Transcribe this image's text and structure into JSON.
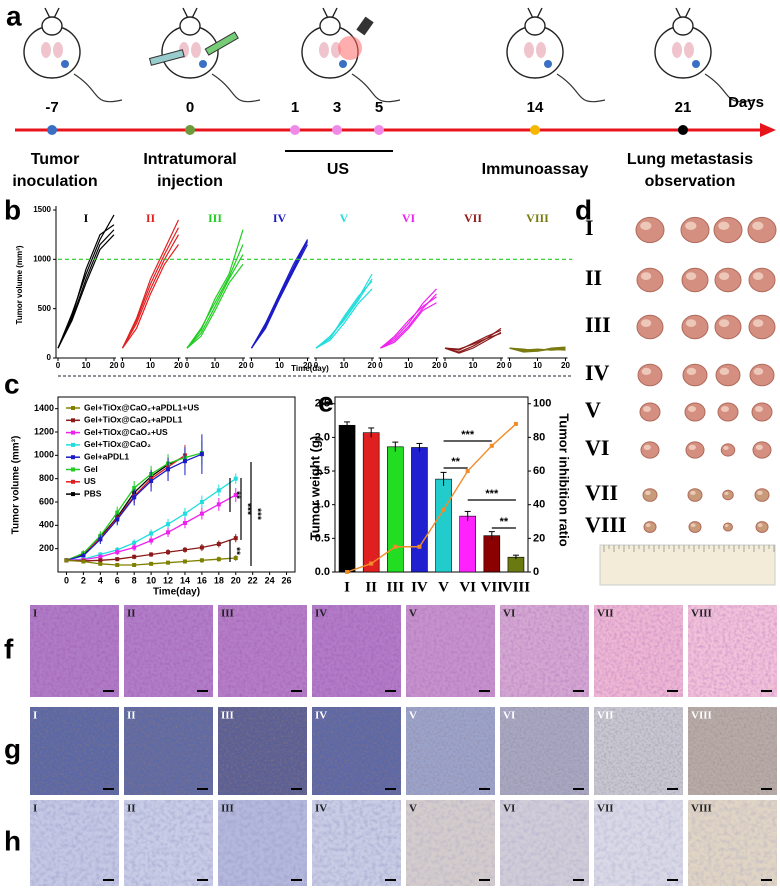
{
  "a": {
    "label": "a",
    "days": [
      -7,
      0,
      1,
      3,
      5,
      14,
      21
    ],
    "unit": "Days",
    "marker_colors": [
      "#3a6fc4",
      "#6a9a3a",
      "#f08ae8",
      "#f08ae8",
      "#f08ae8",
      "#f5b800",
      "#000000"
    ],
    "events": [
      [
        "Tumor",
        "inoculation"
      ],
      [
        "Intratumoral",
        "injection"
      ],
      [
        "US"
      ],
      [
        "Immunoassay"
      ],
      [
        "Lung metastasis",
        "observation"
      ]
    ]
  },
  "chart_data": [
    {
      "type": "small_multiples",
      "label": "b",
      "ylabel": "Tumor volume (mm³)",
      "xlabel": "Time(day)",
      "ylim": [
        0,
        1500
      ],
      "yticks": [
        0,
        500,
        1000,
        1500
      ],
      "xlim": [
        0,
        20
      ],
      "xticks": [
        0,
        10,
        20
      ],
      "threshold": 1000,
      "threshold_color": "#22cc22",
      "x": [
        0,
        5,
        10,
        15,
        20
      ],
      "groups": [
        {
          "name": "I",
          "color": "#000000",
          "curves": [
            [
              100,
              400,
              800,
              1150,
              1300
            ],
            [
              100,
              450,
              850,
              1200,
              1450
            ],
            [
              100,
              380,
              760,
              1100,
              1250
            ],
            [
              100,
              420,
              900,
              1250,
              1350
            ]
          ]
        },
        {
          "name": "II",
          "color": "#e02020",
          "curves": [
            [
              100,
              350,
              700,
              1000,
              1250
            ],
            [
              100,
              400,
              800,
              1100,
              1400
            ],
            [
              100,
              300,
              650,
              950,
              1150
            ],
            [
              100,
              380,
              750,
              1050,
              1320
            ]
          ]
        },
        {
          "name": "III",
          "color": "#22cc22",
          "curves": [
            [
              100,
              280,
              600,
              850,
              1300
            ],
            [
              100,
              250,
              520,
              800,
              1050
            ],
            [
              100,
              300,
              560,
              820,
              1150
            ],
            [
              100,
              220,
              480,
              760,
              950
            ]
          ]
        },
        {
          "name": "IV",
          "color": "#1a1ac8",
          "curves": [
            [
              100,
              350,
              650,
              950,
              1200
            ],
            [
              100,
              320,
              620,
              900,
              1180
            ],
            [
              100,
              300,
              600,
              880,
              1150
            ],
            [
              100,
              340,
              640,
              920,
              1200
            ]
          ]
        },
        {
          "name": "V",
          "color": "#22dddd",
          "curves": [
            [
              100,
              200,
              400,
              600,
              850
            ],
            [
              100,
              220,
              380,
              580,
              800
            ],
            [
              100,
              180,
              350,
              550,
              700
            ],
            [
              100,
              200,
              420,
              620,
              780
            ]
          ]
        },
        {
          "name": "VI",
          "color": "#ee22ee",
          "curves": [
            [
              100,
              200,
              350,
              550,
              700
            ],
            [
              100,
              180,
              320,
              500,
              650
            ],
            [
              100,
              220,
              380,
              520,
              620
            ],
            [
              100,
              160,
              300,
              480,
              560
            ]
          ]
        },
        {
          "name": "VII",
          "color": "#8b1a1a",
          "curves": [
            [
              100,
              60,
              120,
              200,
              300
            ],
            [
              100,
              80,
              150,
              220,
              280
            ],
            [
              100,
              50,
              100,
              180,
              260
            ],
            [
              100,
              90,
              140,
              200,
              250
            ]
          ]
        },
        {
          "name": "VIII",
          "color": "#7a7a10",
          "curves": [
            [
              100,
              70,
              80,
              90,
              100
            ],
            [
              100,
              90,
              70,
              100,
              110
            ],
            [
              100,
              80,
              90,
              80,
              90
            ],
            [
              100,
              60,
              70,
              90,
              80
            ]
          ]
        }
      ]
    },
    {
      "type": "line",
      "label": "c",
      "ylabel": "Tumor volume (mm³)",
      "xlabel": "Time(day)",
      "xlim": [
        -1,
        27
      ],
      "xticks": [
        0,
        2,
        4,
        6,
        8,
        10,
        12,
        14,
        16,
        18,
        20,
        22,
        24,
        26
      ],
      "ylim": [
        0,
        1500
      ],
      "yticks": [
        200,
        400,
        600,
        800,
        1000,
        1200,
        1400
      ],
      "x": [
        0,
        2,
        4,
        6,
        8,
        10,
        12,
        14,
        16,
        18,
        20
      ],
      "series": [
        {
          "name": "Gel+TiOx@CaO₂+aPDL1+US",
          "color": "#808000",
          "values": [
            100,
            90,
            70,
            60,
            60,
            70,
            80,
            90,
            100,
            110,
            120
          ],
          "errors": [
            15,
            15,
            12,
            12,
            12,
            15,
            15,
            18,
            20,
            22,
            25
          ]
        },
        {
          "name": "Gel+TiOx@CaO₂+aPDL1",
          "color": "#8b1a1a",
          "values": [
            100,
            95,
            100,
            110,
            130,
            150,
            170,
            190,
            210,
            240,
            290
          ],
          "errors": [
            15,
            15,
            15,
            18,
            20,
            20,
            25,
            25,
            30,
            30,
            35
          ]
        },
        {
          "name": "Gel+TiOx@CaO₂+US",
          "color": "#ee22ee",
          "values": [
            100,
            105,
            130,
            170,
            210,
            270,
            340,
            420,
            500,
            580,
            660
          ],
          "errors": [
            15,
            15,
            20,
            25,
            30,
            35,
            40,
            45,
            50,
            55,
            60
          ]
        },
        {
          "name": "Gel+TiOx@CaO₂",
          "color": "#22dddd",
          "values": [
            100,
            110,
            150,
            190,
            250,
            330,
            410,
            500,
            600,
            700,
            800
          ],
          "errors": [
            15,
            15,
            20,
            25,
            30,
            35,
            45,
            50,
            55,
            50,
            45
          ]
        },
        {
          "name": "Gel+aPDL1",
          "color": "#1a1ac8",
          "values": [
            100,
            140,
            280,
            450,
            640,
            780,
            880,
            950,
            1010,
            null,
            null
          ],
          "errors": [
            15,
            25,
            40,
            50,
            70,
            90,
            100,
            120,
            170,
            null,
            null
          ]
        },
        {
          "name": "Gel",
          "color": "#22cc22",
          "values": [
            100,
            160,
            310,
            510,
            720,
            840,
            930,
            980,
            1020,
            null,
            null
          ],
          "errors": [
            15,
            25,
            40,
            50,
            60,
            70,
            80,
            90,
            100,
            null,
            null
          ]
        },
        {
          "name": "US",
          "color": "#e02020",
          "values": [
            100,
            160,
            290,
            460,
            650,
            800,
            900,
            1000,
            null,
            null,
            null
          ],
          "errors": [
            15,
            25,
            35,
            45,
            60,
            70,
            80,
            90,
            null,
            null,
            null
          ]
        },
        {
          "name": "PBS",
          "color": "#000000",
          "values": [
            100,
            150,
            300,
            470,
            680,
            820,
            920,
            990,
            null,
            null,
            null
          ],
          "errors": [
            15,
            20,
            30,
            40,
            50,
            60,
            60,
            70,
            null,
            null,
            null
          ]
        }
      ],
      "annotations": [
        "**",
        "***",
        "***",
        "**"
      ]
    },
    {
      "type": "bar",
      "label": "e",
      "ylabel": "Tumor weight (g)",
      "y2label": "Tumor inhibition ratio",
      "categories": [
        "I",
        "II",
        "III",
        "IV",
        "V",
        "VI",
        "VII",
        "VIII"
      ],
      "values": [
        2.18,
        2.07,
        1.86,
        1.85,
        1.38,
        0.83,
        0.54,
        0.22
      ],
      "errors": [
        0.05,
        0.07,
        0.07,
        0.06,
        0.1,
        0.07,
        0.06,
        0.03
      ],
      "colors": [
        "#000000",
        "#e02020",
        "#22dd22",
        "#2020d0",
        "#22cccc",
        "#ff22ff",
        "#8b0000",
        "#6b7a10"
      ],
      "ylim": [
        0,
        2.6
      ],
      "yticks": [
        {
          "value": 0,
          "label": "0.0"
        },
        {
          "value": 0.5,
          "label": "0.5"
        },
        {
          "value": 1,
          "label": "1.0"
        },
        {
          "value": 1.5,
          "label": "1.5"
        },
        {
          "value": 2,
          "label": "2.0"
        },
        {
          "value": 2.5,
          "label": "2.5"
        }
      ],
      "y2lim": [
        0,
        104
      ],
      "y2ticks": [
        0,
        20,
        40,
        60,
        80,
        100
      ],
      "line": {
        "values": [
          0,
          5,
          15,
          15,
          37,
          60,
          75,
          88
        ],
        "color": "#f28c28",
        "axis": "y2"
      },
      "annotations": [
        "***",
        "**",
        "***",
        "**"
      ]
    }
  ],
  "d": {
    "label": "d",
    "rows": [
      "I",
      "II",
      "III",
      "IV",
      "V",
      "VI",
      "VII",
      "VIII"
    ]
  },
  "histology": [
    {
      "label": "f",
      "tiles": [
        "I",
        "II",
        "III",
        "IV",
        "V",
        "VI",
        "VII",
        "VIII"
      ],
      "colors": [
        "#b07cc6",
        "#b27ec8",
        "#b47ec6",
        "#b27cc8",
        "#c692cc",
        "#d4a8d2",
        "#eeb8d4",
        "#f2c2da"
      ]
    },
    {
      "label": "g",
      "tiles": [
        "I",
        "II",
        "III",
        "IV",
        "V",
        "VI",
        "VII",
        "VIII"
      ],
      "colors": [
        "#5a68a8",
        "#5e6aa6",
        "#5a5f96",
        "#5c68a8",
        "#9ca4cc",
        "#a8a8c4",
        "#c8c8d4",
        "#b8aca8"
      ]
    },
    {
      "label": "h",
      "tiles": [
        "I",
        "II",
        "III",
        "IV",
        "V",
        "VI",
        "VII",
        "VIII"
      ],
      "colors": [
        "#c4c8e4",
        "#c8cce6",
        "#b4b8dc",
        "#c8cce4",
        "#d4cccc",
        "#d0ccd8",
        "#d8d8e6",
        "#e0d4c4"
      ]
    }
  ]
}
